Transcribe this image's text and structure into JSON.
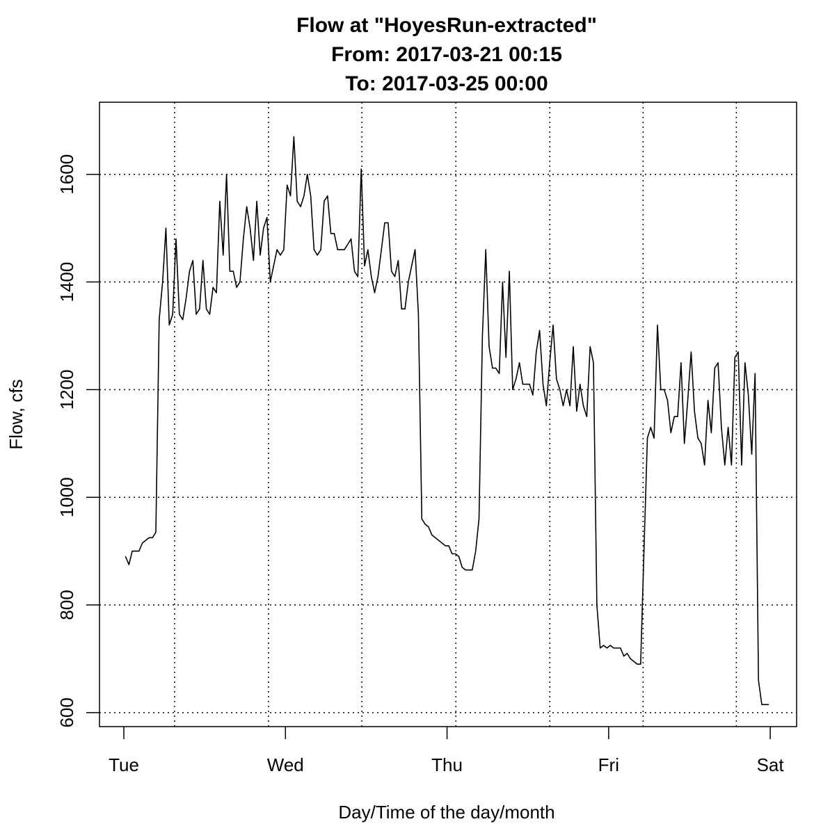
{
  "chart_data": {
    "type": "line",
    "title_lines": [
      "Flow at \"HoyesRun-extracted\"",
      "From: 2017-03-21 00:15",
      "To: 2017-03-25 00:00"
    ],
    "xlabel": "Day/Time of the day/month",
    "ylabel": "Flow, cfs",
    "xlim": [
      "2017-03-20 20:23",
      "2017-03-25 03:55"
    ],
    "ylim": [
      574,
      1734
    ],
    "x_ticks": [
      {
        "at": "2017-03-21 00:00",
        "label": "Tue"
      },
      {
        "at": "2017-03-22 00:00",
        "label": "Wed"
      },
      {
        "at": "2017-03-23 00:00",
        "label": "Thu"
      },
      {
        "at": "2017-03-24 00:00",
        "label": "Fri"
      },
      {
        "at": "2017-03-25 00:00",
        "label": "Sat"
      }
    ],
    "y_ticks": [
      600,
      800,
      1000,
      1200,
      1400,
      1600
    ],
    "grid": true,
    "x_grid": [
      "2017-03-21 07:32",
      "2017-03-21 21:29",
      "2017-03-22 11:21",
      "2017-03-23 01:19",
      "2017-03-23 15:16",
      "2017-03-24 05:07",
      "2017-03-24 18:58"
    ],
    "y_grid": [
      600,
      800,
      1000,
      1200,
      1400,
      1600
    ],
    "line_color": "#000000",
    "series": [
      {
        "start": "2017-03-21 00:15",
        "interval_minutes": 30,
        "values": [
          890,
          875,
          900,
          900,
          900,
          915,
          920,
          925,
          925,
          935,
          1330,
          1400,
          1500,
          1320,
          1340,
          1480,
          1340,
          1330,
          1370,
          1420,
          1440,
          1340,
          1350,
          1440,
          1350,
          1340,
          1390,
          1380,
          1550,
          1450,
          1600,
          1420,
          1420,
          1390,
          1400,
          1480,
          1540,
          1500,
          1440,
          1550,
          1450,
          1500,
          1520,
          1400,
          1430,
          1460,
          1450,
          1460,
          1580,
          1560,
          1670,
          1550,
          1540,
          1560,
          1600,
          1560,
          1460,
          1450,
          1460,
          1550,
          1560,
          1490,
          1490,
          1460,
          1460,
          1460,
          1470,
          1480,
          1420,
          1410,
          1610,
          1430,
          1460,
          1410,
          1380,
          1410,
          1460,
          1510,
          1510,
          1420,
          1410,
          1440,
          1350,
          1350,
          1400,
          1430,
          1460,
          1340,
          960,
          950,
          945,
          930,
          925,
          920,
          915,
          910,
          910,
          895,
          895,
          890,
          870,
          865,
          865,
          865,
          900,
          960,
          1300,
          1460,
          1280,
          1240,
          1240,
          1230,
          1400,
          1260,
          1420,
          1200,
          1220,
          1250,
          1210,
          1210,
          1210,
          1190,
          1270,
          1310,
          1210,
          1170,
          1250,
          1320,
          1220,
          1200,
          1170,
          1200,
          1170,
          1280,
          1160,
          1210,
          1170,
          1150,
          1280,
          1250,
          800,
          720,
          725,
          720,
          725,
          720,
          720,
          720,
          705,
          710,
          700,
          695,
          690,
          690,
          900,
          1110,
          1130,
          1110,
          1320,
          1200,
          1200,
          1180,
          1120,
          1150,
          1150,
          1250,
          1100,
          1180,
          1270,
          1160,
          1110,
          1100,
          1060,
          1180,
          1120,
          1240,
          1250,
          1130,
          1060,
          1130,
          1060,
          1260,
          1270,
          1060,
          1250,
          1190,
          1080,
          1230,
          660,
          615,
          615,
          615
        ]
      }
    ]
  }
}
